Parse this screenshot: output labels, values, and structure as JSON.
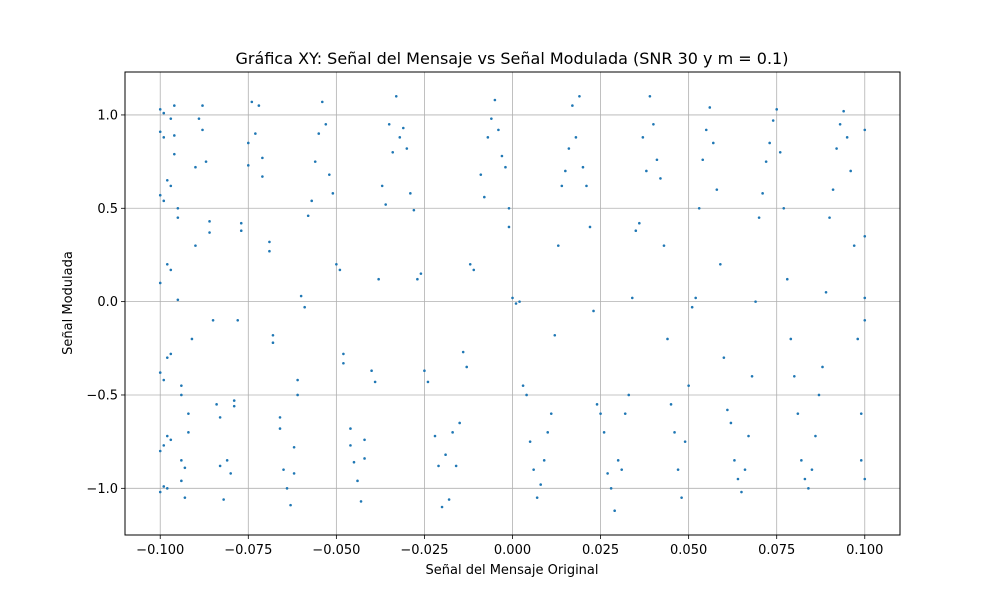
{
  "chart_data": {
    "type": "scatter",
    "title": "Gráfica XY: Señal del Mensaje vs Señal Modulada (SNR 30 y m = 0.1)",
    "xlabel": "Señal del Mensaje Original",
    "ylabel": "Señal Modulada",
    "xlim": [
      -0.11,
      0.11
    ],
    "ylim": [
      -1.25,
      1.23
    ],
    "xticks": [
      -0.1,
      -0.075,
      -0.05,
      -0.025,
      0.0,
      0.025,
      0.05,
      0.075,
      0.1
    ],
    "xtick_labels": [
      "−0.100",
      "−0.075",
      "−0.050",
      "−0.025",
      "0.000",
      "0.025",
      "0.050",
      "0.075",
      "0.100"
    ],
    "yticks": [
      -1.0,
      -0.5,
      0.0,
      0.5,
      1.0
    ],
    "ytick_labels": [
      "−1.0",
      "−0.5",
      "0.0",
      "0.5",
      "1.0"
    ],
    "grid": true,
    "marker_color": "#1f77b4",
    "points": [
      [
        -0.1,
        1.03
      ],
      [
        -0.1,
        0.91
      ],
      [
        -0.1,
        0.57
      ],
      [
        -0.1,
        0.1
      ],
      [
        -0.1,
        -0.38
      ],
      [
        -0.1,
        -0.8
      ],
      [
        -0.1,
        -1.02
      ],
      [
        -0.099,
        1.01
      ],
      [
        -0.099,
        0.88
      ],
      [
        -0.099,
        0.54
      ],
      [
        -0.099,
        -0.42
      ],
      [
        -0.099,
        -0.77
      ],
      [
        -0.099,
        -0.99
      ],
      [
        -0.098,
        0.65
      ],
      [
        -0.098,
        0.2
      ],
      [
        -0.098,
        -0.3
      ],
      [
        -0.098,
        -0.72
      ],
      [
        -0.098,
        -1.0
      ],
      [
        -0.097,
        0.98
      ],
      [
        -0.097,
        0.62
      ],
      [
        -0.097,
        0.17
      ],
      [
        -0.097,
        -0.28
      ],
      [
        -0.097,
        -0.74
      ],
      [
        -0.096,
        1.05
      ],
      [
        -0.096,
        0.89
      ],
      [
        -0.096,
        0.79
      ],
      [
        -0.095,
        0.5
      ],
      [
        -0.095,
        0.45
      ],
      [
        -0.095,
        0.01
      ],
      [
        -0.094,
        -0.45
      ],
      [
        -0.094,
        -0.5
      ],
      [
        -0.094,
        -0.85
      ],
      [
        -0.094,
        -0.96
      ],
      [
        -0.093,
        -0.89
      ],
      [
        -0.093,
        -1.05
      ],
      [
        -0.092,
        -0.6
      ],
      [
        -0.092,
        -0.7
      ],
      [
        -0.091,
        -0.2
      ],
      [
        -0.09,
        0.3
      ],
      [
        -0.09,
        0.72
      ],
      [
        -0.089,
        0.98
      ],
      [
        -0.088,
        1.05
      ],
      [
        -0.088,
        0.92
      ],
      [
        -0.087,
        0.75
      ],
      [
        -0.086,
        0.43
      ],
      [
        -0.086,
        0.37
      ],
      [
        -0.085,
        -0.1
      ],
      [
        -0.084,
        -0.55
      ],
      [
        -0.083,
        -0.62
      ],
      [
        -0.083,
        -0.88
      ],
      [
        -0.082,
        -1.06
      ],
      [
        -0.081,
        -0.85
      ],
      [
        -0.08,
        -0.92
      ],
      [
        -0.079,
        -0.56
      ],
      [
        -0.079,
        -0.53
      ],
      [
        -0.078,
        -0.1
      ],
      [
        -0.077,
        0.38
      ],
      [
        -0.077,
        0.42
      ],
      [
        -0.075,
        0.85
      ],
      [
        -0.075,
        0.73
      ],
      [
        -0.074,
        1.07
      ],
      [
        -0.073,
        0.9
      ],
      [
        -0.072,
        1.05
      ],
      [
        -0.071,
        0.77
      ],
      [
        -0.071,
        0.67
      ],
      [
        -0.069,
        0.32
      ],
      [
        -0.069,
        0.27
      ],
      [
        -0.068,
        -0.18
      ],
      [
        -0.068,
        -0.22
      ],
      [
        -0.066,
        -0.62
      ],
      [
        -0.066,
        -0.68
      ],
      [
        -0.065,
        -0.9
      ],
      [
        -0.064,
        -1.0
      ],
      [
        -0.063,
        -1.09
      ],
      [
        -0.062,
        -0.92
      ],
      [
        -0.062,
        -0.78
      ],
      [
        -0.061,
        -0.5
      ],
      [
        -0.061,
        -0.42
      ],
      [
        -0.06,
        0.03
      ],
      [
        -0.059,
        -0.03
      ],
      [
        -0.058,
        0.46
      ],
      [
        -0.057,
        0.54
      ],
      [
        -0.056,
        0.75
      ],
      [
        -0.055,
        0.9
      ],
      [
        -0.054,
        1.07
      ],
      [
        -0.053,
        0.95
      ],
      [
        -0.052,
        0.68
      ],
      [
        -0.051,
        0.58
      ],
      [
        -0.05,
        0.2
      ],
      [
        -0.049,
        0.17
      ],
      [
        -0.048,
        -0.28
      ],
      [
        -0.048,
        -0.33
      ],
      [
        -0.046,
        -0.68
      ],
      [
        -0.046,
        -0.77
      ],
      [
        -0.045,
        -0.86
      ],
      [
        -0.044,
        -0.96
      ],
      [
        -0.043,
        -1.07
      ],
      [
        -0.042,
        -0.84
      ],
      [
        -0.042,
        -0.74
      ],
      [
        -0.04,
        -0.37
      ],
      [
        -0.039,
        -0.43
      ],
      [
        -0.038,
        0.12
      ],
      [
        -0.037,
        0.62
      ],
      [
        -0.036,
        0.52
      ],
      [
        -0.035,
        0.95
      ],
      [
        -0.034,
        0.8
      ],
      [
        -0.033,
        1.1
      ],
      [
        -0.032,
        0.88
      ],
      [
        -0.031,
        0.93
      ],
      [
        -0.03,
        0.82
      ],
      [
        -0.029,
        0.58
      ],
      [
        -0.028,
        0.49
      ],
      [
        -0.027,
        0.12
      ],
      [
        -0.026,
        0.15
      ],
      [
        -0.025,
        -0.37
      ],
      [
        -0.024,
        -0.43
      ],
      [
        -0.022,
        -0.72
      ],
      [
        -0.021,
        -0.88
      ],
      [
        -0.02,
        -1.1
      ],
      [
        -0.019,
        -0.82
      ],
      [
        -0.018,
        -1.06
      ],
      [
        -0.017,
        -0.7
      ],
      [
        -0.016,
        -0.88
      ],
      [
        -0.015,
        -0.65
      ],
      [
        -0.014,
        -0.27
      ],
      [
        -0.013,
        -0.35
      ],
      [
        -0.012,
        0.2
      ],
      [
        -0.011,
        0.17
      ],
      [
        -0.009,
        0.68
      ],
      [
        -0.008,
        0.56
      ],
      [
        -0.007,
        0.88
      ],
      [
        -0.006,
        0.98
      ],
      [
        -0.005,
        1.08
      ],
      [
        -0.004,
        0.92
      ],
      [
        -0.003,
        0.78
      ],
      [
        -0.002,
        0.72
      ],
      [
        -0.001,
        0.5
      ],
      [
        -0.001,
        0.4
      ],
      [
        0.0,
        0.02
      ],
      [
        0.001,
        -0.01
      ],
      [
        0.002,
        0.0
      ],
      [
        0.003,
        -0.45
      ],
      [
        0.004,
        -0.5
      ],
      [
        0.005,
        -0.75
      ],
      [
        0.006,
        -0.9
      ],
      [
        0.007,
        -1.05
      ],
      [
        0.008,
        -0.98
      ],
      [
        0.009,
        -0.85
      ],
      [
        0.01,
        -0.7
      ],
      [
        0.011,
        -0.6
      ],
      [
        0.012,
        -0.18
      ],
      [
        0.013,
        0.3
      ],
      [
        0.014,
        0.62
      ],
      [
        0.015,
        0.7
      ],
      [
        0.016,
        0.82
      ],
      [
        0.017,
        1.05
      ],
      [
        0.018,
        0.88
      ],
      [
        0.019,
        1.1
      ],
      [
        0.02,
        0.72
      ],
      [
        0.021,
        0.62
      ],
      [
        0.022,
        0.4
      ],
      [
        0.023,
        -0.05
      ],
      [
        0.024,
        -0.55
      ],
      [
        0.025,
        -0.6
      ],
      [
        0.026,
        -0.7
      ],
      [
        0.027,
        -0.92
      ],
      [
        0.028,
        -1.0
      ],
      [
        0.029,
        -1.12
      ],
      [
        0.03,
        -0.85
      ],
      [
        0.031,
        -0.9
      ],
      [
        0.032,
        -0.6
      ],
      [
        0.033,
        -0.5
      ],
      [
        0.034,
        0.02
      ],
      [
        0.035,
        0.38
      ],
      [
        0.036,
        0.42
      ],
      [
        0.037,
        0.88
      ],
      [
        0.038,
        0.7
      ],
      [
        0.039,
        1.1
      ],
      [
        0.04,
        0.95
      ],
      [
        0.041,
        0.76
      ],
      [
        0.042,
        0.66
      ],
      [
        0.043,
        0.3
      ],
      [
        0.044,
        -0.2
      ],
      [
        0.045,
        -0.55
      ],
      [
        0.046,
        -0.7
      ],
      [
        0.047,
        -0.9
      ],
      [
        0.048,
        -1.05
      ],
      [
        0.049,
        -0.75
      ],
      [
        0.05,
        -0.45
      ],
      [
        0.051,
        -0.03
      ],
      [
        0.052,
        0.02
      ],
      [
        0.053,
        0.5
      ],
      [
        0.054,
        0.76
      ],
      [
        0.055,
        0.92
      ],
      [
        0.056,
        1.04
      ],
      [
        0.057,
        0.85
      ],
      [
        0.058,
        0.6
      ],
      [
        0.059,
        0.2
      ],
      [
        0.06,
        -0.3
      ],
      [
        0.061,
        -0.58
      ],
      [
        0.062,
        -0.65
      ],
      [
        0.063,
        -0.85
      ],
      [
        0.064,
        -0.95
      ],
      [
        0.065,
        -1.02
      ],
      [
        0.066,
        -0.9
      ],
      [
        0.067,
        -0.72
      ],
      [
        0.068,
        -0.4
      ],
      [
        0.069,
        0.0
      ],
      [
        0.07,
        0.45
      ],
      [
        0.071,
        0.58
      ],
      [
        0.072,
        0.75
      ],
      [
        0.073,
        0.85
      ],
      [
        0.074,
        0.97
      ],
      [
        0.075,
        1.03
      ],
      [
        0.076,
        0.8
      ],
      [
        0.077,
        0.5
      ],
      [
        0.078,
        0.12
      ],
      [
        0.079,
        -0.2
      ],
      [
        0.08,
        -0.4
      ],
      [
        0.081,
        -0.6
      ],
      [
        0.082,
        -0.85
      ],
      [
        0.083,
        -0.95
      ],
      [
        0.084,
        -1.0
      ],
      [
        0.085,
        -0.9
      ],
      [
        0.086,
        -0.72
      ],
      [
        0.087,
        -0.5
      ],
      [
        0.088,
        -0.35
      ],
      [
        0.089,
        0.05
      ],
      [
        0.09,
        0.45
      ],
      [
        0.091,
        0.6
      ],
      [
        0.092,
        0.82
      ],
      [
        0.093,
        0.95
      ],
      [
        0.094,
        1.02
      ],
      [
        0.095,
        0.88
      ],
      [
        0.096,
        0.7
      ],
      [
        0.097,
        0.3
      ],
      [
        0.098,
        -0.2
      ],
      [
        0.099,
        -0.6
      ],
      [
        0.099,
        -0.85
      ],
      [
        0.1,
        -0.95
      ],
      [
        0.1,
        0.92
      ],
      [
        0.1,
        0.35
      ],
      [
        0.1,
        -0.1
      ],
      [
        0.1,
        0.02
      ]
    ]
  }
}
